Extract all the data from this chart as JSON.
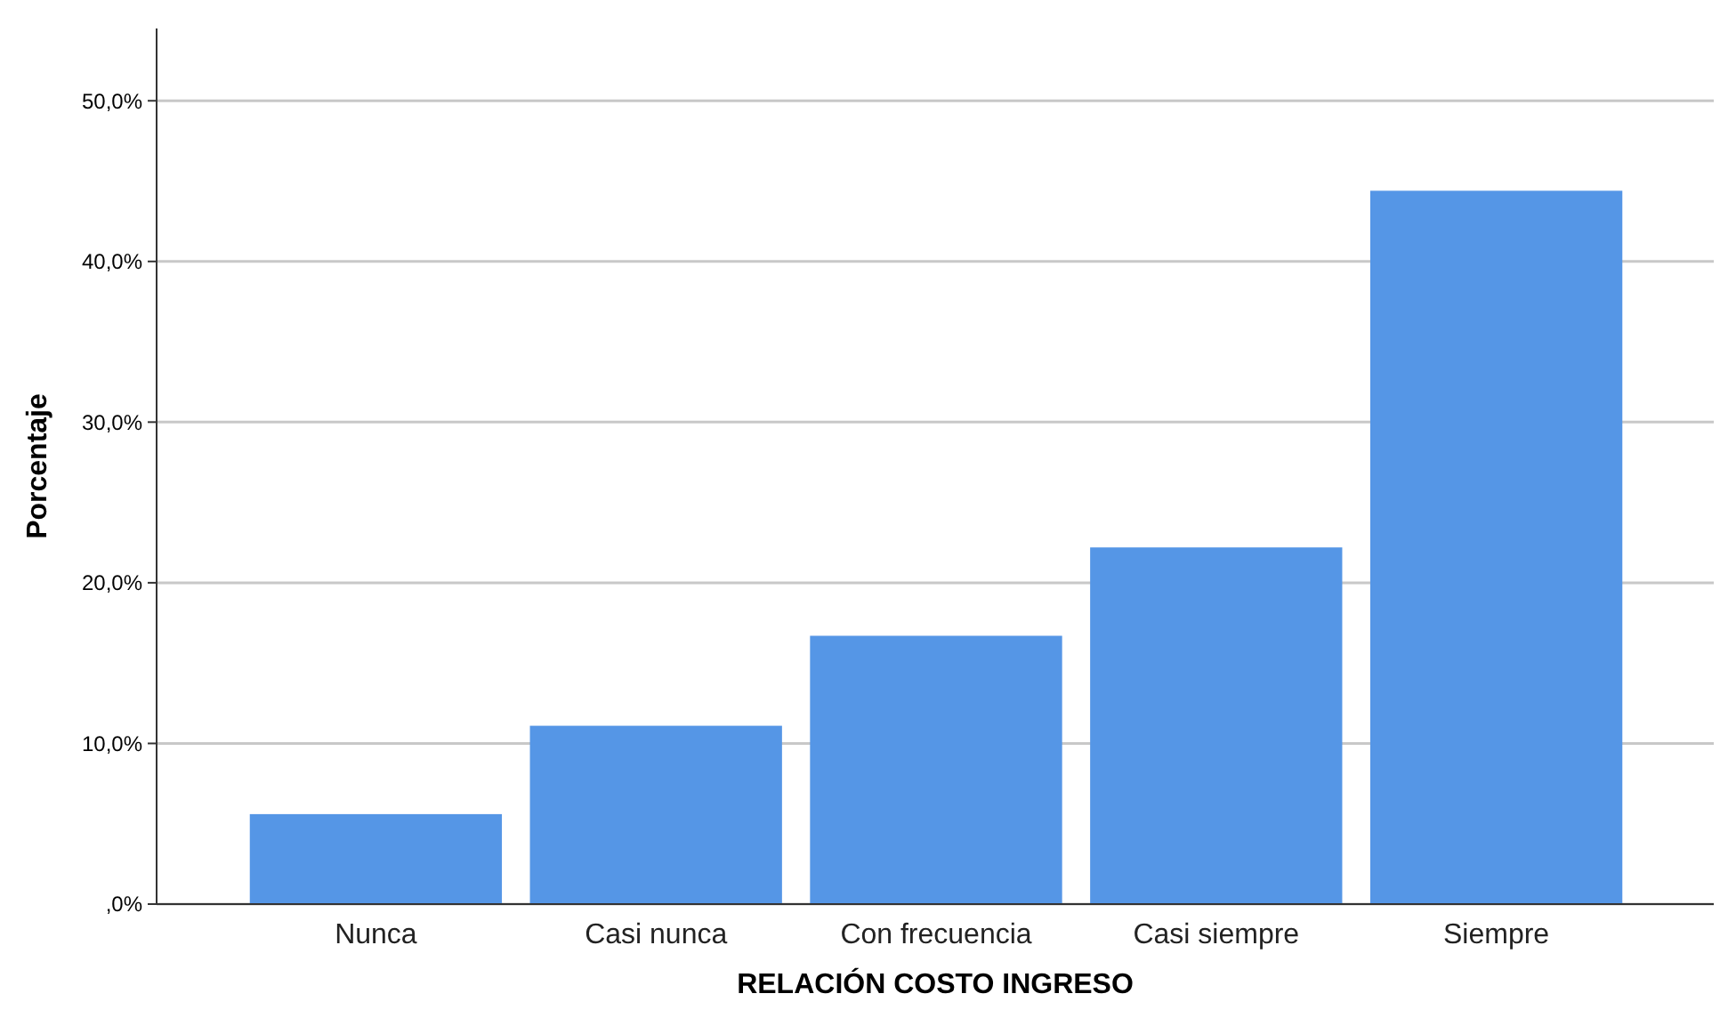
{
  "chart_data": {
    "type": "bar",
    "xlabel": "RELACIÓN COSTO INGRESO",
    "ylabel": "Porcentaje",
    "categories": [
      "Nunca",
      "Casi nunca",
      "Con frecuencia",
      "Casi siempre",
      "Siempre"
    ],
    "values": [
      5.6,
      11.1,
      16.7,
      22.2,
      44.4
    ],
    "color": "#5596e6",
    "ylim": [
      0,
      54.5
    ],
    "yticks": [
      {
        "value": 0,
        "label": ",0%"
      },
      {
        "value": 10,
        "label": "10,0%"
      },
      {
        "value": 20,
        "label": "20,0%"
      },
      {
        "value": 30,
        "label": "30,0%"
      },
      {
        "value": 40,
        "label": "40,0%"
      },
      {
        "value": 50,
        "label": "50,0%"
      }
    ],
    "grid": "y"
  }
}
